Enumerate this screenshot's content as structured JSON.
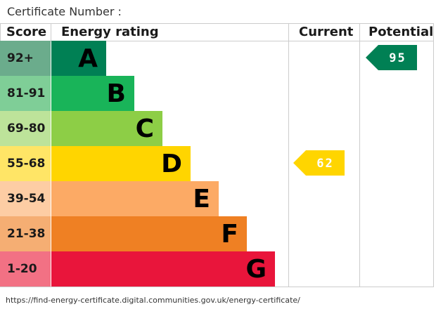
{
  "header": {
    "certificate_label": "Certificate Number :"
  },
  "columns": {
    "score": "Score",
    "energy_rating": "Energy rating",
    "current": "Current",
    "potential": "Potential"
  },
  "chart_data": {
    "type": "bar",
    "bands": [
      {
        "score": "92+",
        "letter": "A",
        "color": "#008054",
        "score_bg": "#6bac8c"
      },
      {
        "score": "81-91",
        "letter": "B",
        "color": "#19b459",
        "score_bg": "#7fce97"
      },
      {
        "score": "69-80",
        "letter": "C",
        "color": "#8dce46",
        "score_bg": "#bde39a"
      },
      {
        "score": "55-68",
        "letter": "D",
        "color": "#ffd500",
        "score_bg": "#ffe566"
      },
      {
        "score": "39-54",
        "letter": "E",
        "color": "#fcaa65",
        "score_bg": "#fdcda4"
      },
      {
        "score": "21-38",
        "letter": "F",
        "color": "#ef8023",
        "score_bg": "#f5ae73"
      },
      {
        "score": "1-20",
        "letter": "G",
        "color": "#e9153b",
        "score_bg": "#f27184"
      }
    ],
    "current": {
      "value": 62,
      "label": "62",
      "band": "D",
      "color": "#ffd500"
    },
    "potential": {
      "value": 95,
      "label": "95",
      "band": "A",
      "color": "#008054"
    }
  },
  "footer": {
    "url": "https://find-energy-certificate.digital.communities.gov.uk/energy-certificate/"
  }
}
